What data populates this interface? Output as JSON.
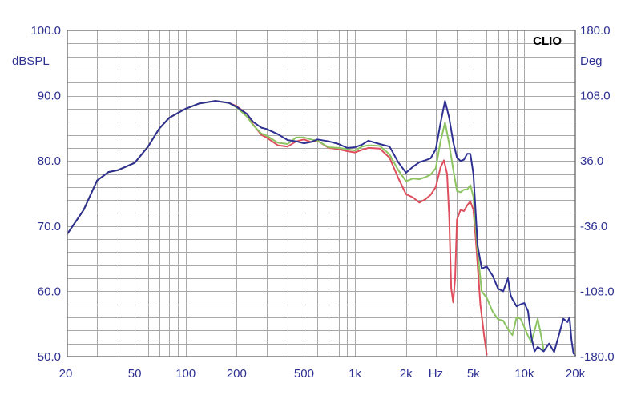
{
  "chart_data": {
    "type": "line",
    "brand": "CLIO",
    "y_left_unit": "dBSPL",
    "y_right_unit": "Deg",
    "x_unit": "Hz",
    "x_scale": "log",
    "xlim": [
      20,
      20000
    ],
    "ylim": [
      50,
      100
    ],
    "y_right_lim": [
      -180,
      180
    ],
    "x_tick_labels": [
      {
        "value": 20,
        "label": "20"
      },
      {
        "value": 50,
        "label": "50"
      },
      {
        "value": 100,
        "label": "100"
      },
      {
        "value": 200,
        "label": "200"
      },
      {
        "value": 500,
        "label": "500"
      },
      {
        "value": 1000,
        "label": "1k"
      },
      {
        "value": 2000,
        "label": "2k"
      },
      {
        "value": 5000,
        "label": "5k"
      },
      {
        "value": 10000,
        "label": "10k"
      },
      {
        "value": 20000,
        "label": "20k"
      }
    ],
    "y_left_tick_labels": [
      {
        "value": 50,
        "label": "50.0"
      },
      {
        "value": 60,
        "label": "60.0"
      },
      {
        "value": 70,
        "label": "70.0"
      },
      {
        "value": 80,
        "label": "80.0"
      },
      {
        "value": 90,
        "label": "90.0"
      },
      {
        "value": 100,
        "label": "100.0"
      }
    ],
    "y_right_tick_labels": [
      {
        "value": -180,
        "label": "-180.0"
      },
      {
        "value": -108,
        "label": "-108.0"
      },
      {
        "value": -36,
        "label": "-36.0"
      },
      {
        "value": 36,
        "label": "36.0"
      },
      {
        "value": 108,
        "label": "108.0"
      },
      {
        "value": 180,
        "label": "180.0"
      }
    ],
    "grid": true,
    "colors": {
      "background": "#ffffff",
      "grid": "#a9a9a9",
      "frame": "#7a7a7a",
      "text": "#2e3192"
    },
    "series": [
      {
        "color": "#df4e5d",
        "points": [
          [
            20,
            68.8
          ],
          [
            25,
            72.5
          ],
          [
            30,
            77.0
          ],
          [
            35,
            78.3
          ],
          [
            40,
            78.6
          ],
          [
            50,
            79.7
          ],
          [
            60,
            82.2
          ],
          [
            70,
            85.0
          ],
          [
            80,
            86.6
          ],
          [
            100,
            88.0
          ],
          [
            120,
            88.8
          ],
          [
            150,
            89.2
          ],
          [
            180,
            88.9
          ],
          [
            200,
            88.4
          ],
          [
            230,
            87.2
          ],
          [
            250,
            85.6
          ],
          [
            280,
            84.0
          ],
          [
            300,
            83.6
          ],
          [
            350,
            82.4
          ],
          [
            400,
            82.2
          ],
          [
            450,
            83.0
          ],
          [
            500,
            83.3
          ],
          [
            550,
            82.9
          ],
          [
            600,
            83.1
          ],
          [
            700,
            82.0
          ],
          [
            800,
            81.8
          ],
          [
            900,
            81.5
          ],
          [
            1000,
            81.3
          ],
          [
            1100,
            81.7
          ],
          [
            1200,
            82.0
          ],
          [
            1400,
            81.9
          ],
          [
            1600,
            80.5
          ],
          [
            1800,
            77.4
          ],
          [
            2000,
            74.9
          ],
          [
            2200,
            74.4
          ],
          [
            2400,
            73.6
          ],
          [
            2600,
            74.1
          ],
          [
            2800,
            74.8
          ],
          [
            3000,
            76.0
          ],
          [
            3200,
            79.0
          ],
          [
            3350,
            80.1
          ],
          [
            3500,
            78.0
          ],
          [
            3600,
            71.5
          ],
          [
            3700,
            60.5
          ],
          [
            3800,
            58.3
          ],
          [
            3900,
            62.0
          ],
          [
            4000,
            71.0
          ],
          [
            4200,
            72.5
          ],
          [
            4400,
            72.3
          ],
          [
            4600,
            73.2
          ],
          [
            4800,
            73.8
          ],
          [
            5000,
            72.5
          ],
          [
            5200,
            67.0
          ],
          [
            5500,
            58.0
          ],
          [
            5800,
            53.0
          ],
          [
            6000,
            50.3
          ]
        ]
      },
      {
        "color": "#8dc462",
        "points": [
          [
            20,
            68.8
          ],
          [
            25,
            72.5
          ],
          [
            30,
            77.0
          ],
          [
            35,
            78.3
          ],
          [
            40,
            78.6
          ],
          [
            50,
            79.7
          ],
          [
            60,
            82.2
          ],
          [
            70,
            85.0
          ],
          [
            80,
            86.6
          ],
          [
            100,
            88.0
          ],
          [
            120,
            88.8
          ],
          [
            150,
            89.2
          ],
          [
            180,
            88.9
          ],
          [
            200,
            88.2
          ],
          [
            230,
            86.8
          ],
          [
            250,
            85.5
          ],
          [
            280,
            84.2
          ],
          [
            300,
            83.9
          ],
          [
            350,
            82.8
          ],
          [
            400,
            82.6
          ],
          [
            450,
            83.6
          ],
          [
            500,
            83.6
          ],
          [
            550,
            83.3
          ],
          [
            600,
            83.1
          ],
          [
            700,
            82.1
          ],
          [
            800,
            82.0
          ],
          [
            900,
            81.8
          ],
          [
            1000,
            81.6
          ],
          [
            1100,
            82.2
          ],
          [
            1200,
            82.4
          ],
          [
            1400,
            82.3
          ],
          [
            1600,
            81.0
          ],
          [
            1800,
            78.6
          ],
          [
            2000,
            76.9
          ],
          [
            2200,
            77.3
          ],
          [
            2400,
            77.2
          ],
          [
            2600,
            77.5
          ],
          [
            2800,
            77.9
          ],
          [
            3000,
            78.9
          ],
          [
            3200,
            83.0
          ],
          [
            3400,
            85.9
          ],
          [
            3600,
            82.6
          ],
          [
            3800,
            78.7
          ],
          [
            4000,
            75.4
          ],
          [
            4200,
            75.2
          ],
          [
            4400,
            75.6
          ],
          [
            4600,
            75.6
          ],
          [
            4800,
            76.3
          ],
          [
            5000,
            74.5
          ],
          [
            5300,
            66.0
          ],
          [
            5600,
            60.0
          ],
          [
            6000,
            59.0
          ],
          [
            6500,
            56.9
          ],
          [
            7000,
            55.7
          ],
          [
            7500,
            55.5
          ],
          [
            8000,
            54.2
          ],
          [
            8500,
            53.3
          ],
          [
            9000,
            56.0
          ],
          [
            9500,
            55.8
          ],
          [
            10000,
            54.5
          ],
          [
            10500,
            53.2
          ],
          [
            11000,
            52.2
          ],
          [
            11500,
            54.0
          ],
          [
            12000,
            55.8
          ],
          [
            12500,
            53.5
          ],
          [
            13000,
            51.0
          ]
        ]
      },
      {
        "color": "#2e3192",
        "points": [
          [
            20,
            68.8
          ],
          [
            25,
            72.5
          ],
          [
            30,
            77.0
          ],
          [
            35,
            78.3
          ],
          [
            40,
            78.6
          ],
          [
            50,
            79.7
          ],
          [
            60,
            82.2
          ],
          [
            70,
            85.0
          ],
          [
            80,
            86.6
          ],
          [
            100,
            88.0
          ],
          [
            120,
            88.8
          ],
          [
            150,
            89.2
          ],
          [
            180,
            88.9
          ],
          [
            200,
            88.3
          ],
          [
            230,
            87.2
          ],
          [
            250,
            86.0
          ],
          [
            280,
            85.1
          ],
          [
            300,
            84.9
          ],
          [
            350,
            84.1
          ],
          [
            400,
            83.2
          ],
          [
            450,
            83.0
          ],
          [
            500,
            82.7
          ],
          [
            550,
            82.9
          ],
          [
            600,
            83.3
          ],
          [
            700,
            83.0
          ],
          [
            800,
            82.6
          ],
          [
            900,
            82.0
          ],
          [
            1000,
            82.1
          ],
          [
            1100,
            82.5
          ],
          [
            1200,
            83.1
          ],
          [
            1400,
            82.6
          ],
          [
            1600,
            82.2
          ],
          [
            1800,
            79.8
          ],
          [
            2000,
            78.2
          ],
          [
            2200,
            79.1
          ],
          [
            2400,
            79.8
          ],
          [
            2600,
            80.1
          ],
          [
            2800,
            80.4
          ],
          [
            3000,
            81.8
          ],
          [
            3200,
            85.8
          ],
          [
            3400,
            89.2
          ],
          [
            3600,
            86.6
          ],
          [
            3800,
            82.9
          ],
          [
            4000,
            80.5
          ],
          [
            4200,
            80.0
          ],
          [
            4400,
            80.2
          ],
          [
            4600,
            81.1
          ],
          [
            4800,
            81.1
          ],
          [
            5000,
            78.0
          ],
          [
            5300,
            67.0
          ],
          [
            5600,
            63.5
          ],
          [
            6000,
            63.8
          ],
          [
            6500,
            62.4
          ],
          [
            7000,
            60.4
          ],
          [
            7500,
            60.0
          ],
          [
            8000,
            62.0
          ],
          [
            8300,
            59.4
          ],
          [
            8500,
            58.8
          ],
          [
            9000,
            57.7
          ],
          [
            9500,
            58.0
          ],
          [
            10000,
            58.2
          ],
          [
            10500,
            57.0
          ],
          [
            11000,
            53.0
          ],
          [
            11500,
            50.8
          ],
          [
            12000,
            51.5
          ],
          [
            13000,
            50.8
          ],
          [
            14000,
            52.0
          ],
          [
            15000,
            50.7
          ],
          [
            16000,
            53.3
          ],
          [
            17000,
            55.8
          ],
          [
            18000,
            55.3
          ],
          [
            18500,
            56.0
          ],
          [
            19000,
            52.5
          ],
          [
            19500,
            50.5
          ],
          [
            20000,
            50.2
          ]
        ]
      }
    ]
  }
}
